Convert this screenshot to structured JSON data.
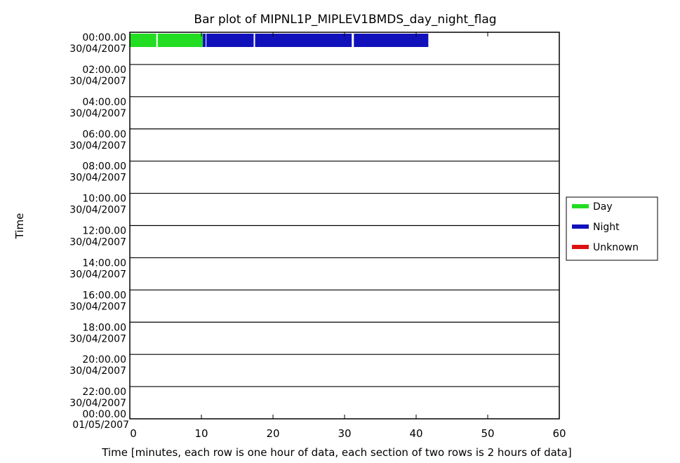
{
  "chart_data": {
    "type": "bar",
    "title": "Bar plot of MIPNL1P_MIPLEV1BMDS_day_night_flag",
    "xlabel": "Time [minutes, each row is one hour of data, each section of two rows is 2 hours of data]",
    "ylabel": "Time",
    "xlim": [
      0,
      60
    ],
    "x_ticks": [
      "0",
      "10",
      "20",
      "30",
      "40",
      "50",
      "60"
    ],
    "y_ticks": [
      {
        "time": "00:00.00",
        "date": "30/04/2007"
      },
      {
        "time": "02:00.00",
        "date": "30/04/2007"
      },
      {
        "time": "04:00.00",
        "date": "30/04/2007"
      },
      {
        "time": "06:00.00",
        "date": "30/04/2007"
      },
      {
        "time": "08:00.00",
        "date": "30/04/2007"
      },
      {
        "time": "10:00.00",
        "date": "30/04/2007"
      },
      {
        "time": "12:00.00",
        "date": "30/04/2007"
      },
      {
        "time": "14:00.00",
        "date": "30/04/2007"
      },
      {
        "time": "16:00.00",
        "date": "30/04/2007"
      },
      {
        "time": "18:00.00",
        "date": "30/04/2007"
      },
      {
        "time": "20:00.00",
        "date": "30/04/2007"
      },
      {
        "time": "22:00.00",
        "date": "30/04/2007"
      },
      {
        "time": "00:00.00",
        "date": "01/05/2007"
      }
    ],
    "legend": {
      "position": "right",
      "entries": [
        {
          "name": "Day",
          "color": "#22dd22"
        },
        {
          "name": "Night",
          "color": "#1111bb"
        },
        {
          "name": "Unknown",
          "color": "#dd1111"
        }
      ]
    },
    "segments": [
      {
        "row": 0,
        "start": 0,
        "end": 3.7,
        "flag": "Day"
      },
      {
        "row": 0,
        "start": 3.9,
        "end": 10.2,
        "flag": "Day"
      },
      {
        "row": 0,
        "start": 10.2,
        "end": 10.6,
        "flag": "Night"
      },
      {
        "row": 0,
        "start": 10.7,
        "end": 17.3,
        "flag": "Night"
      },
      {
        "row": 0,
        "start": 17.5,
        "end": 31.0,
        "flag": "Night"
      },
      {
        "row": 0,
        "start": 31.3,
        "end": 41.7,
        "flag": "Night"
      }
    ]
  }
}
